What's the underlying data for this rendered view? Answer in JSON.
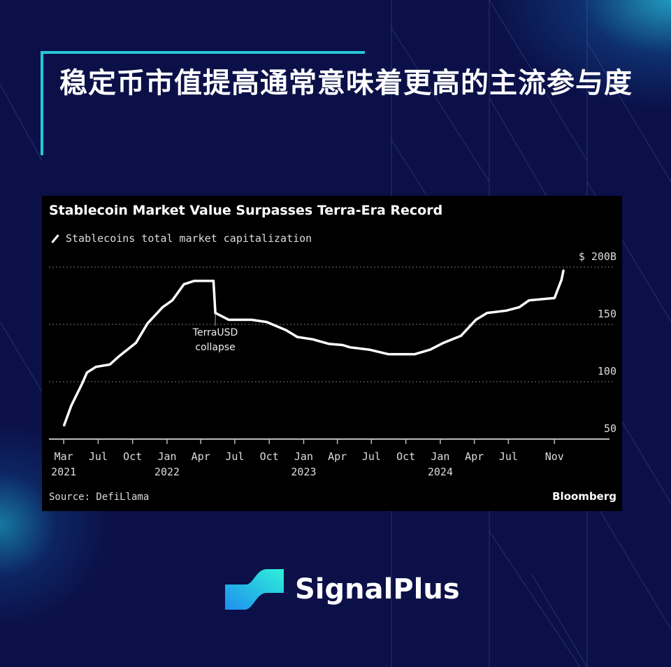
{
  "header": {
    "title": "稳定币市值提高通常意味着更高的主流参与度"
  },
  "brand": {
    "name": "SignalPlus",
    "accent": "#27c6d9",
    "background": "#0b1048"
  },
  "chart_data": {
    "type": "line",
    "title": "Stablecoin Market Value Surpasses Terra-Era Record",
    "series": [
      {
        "name": "Stablecoins total market capitalization",
        "color": "#ffffff",
        "points": [
          [
            "2021-04-01",
            62
          ],
          [
            "2021-04-20",
            79
          ],
          [
            "2021-05-20",
            99
          ],
          [
            "2021-06-01",
            108
          ],
          [
            "2021-06-25",
            113
          ],
          [
            "2021-08-01",
            115
          ],
          [
            "2021-08-25",
            122
          ],
          [
            "2021-10-10",
            134
          ],
          [
            "2021-11-10",
            151
          ],
          [
            "2021-12-20",
            165
          ],
          [
            "2022-01-15",
            171
          ],
          [
            "2022-02-15",
            185
          ],
          [
            "2022-03-15",
            188
          ],
          [
            "2022-05-05",
            188
          ],
          [
            "2022-05-10",
            160
          ],
          [
            "2022-06-15",
            154
          ],
          [
            "2022-08-15",
            154
          ],
          [
            "2022-09-25",
            152
          ],
          [
            "2022-11-15",
            145
          ],
          [
            "2022-12-15",
            139
          ],
          [
            "2023-01-25",
            137
          ],
          [
            "2023-03-10",
            133
          ],
          [
            "2023-04-15",
            132
          ],
          [
            "2023-05-05",
            130
          ],
          [
            "2023-06-25",
            128
          ],
          [
            "2023-08-15",
            124
          ],
          [
            "2023-10-25",
            124
          ],
          [
            "2023-12-05",
            128
          ],
          [
            "2024-01-10",
            134
          ],
          [
            "2024-02-25",
            140
          ],
          [
            "2024-04-05",
            154
          ],
          [
            "2024-05-05",
            160
          ],
          [
            "2024-06-25",
            162
          ],
          [
            "2024-07-30",
            165
          ],
          [
            "2024-08-25",
            171
          ],
          [
            "2024-11-01",
            173
          ],
          [
            "2024-11-20",
            189
          ],
          [
            "2024-11-25",
            197
          ]
        ]
      }
    ],
    "annotation": {
      "date": "2022-05-10",
      "value": 160,
      "text_line1": "TerraUSD",
      "text_line2": "collapse"
    },
    "yaxis": {
      "range": [
        50,
        200
      ],
      "ticks": [
        50,
        100,
        150,
        200
      ],
      "tick_labels": [
        "50",
        "100",
        "150",
        "$ 200B"
      ],
      "position": "right",
      "grid": true
    },
    "xaxis": {
      "range": [
        "2021-03-01",
        "2025-01-15"
      ],
      "ticks": [
        {
          "date": "2021-03-01",
          "label": "Mar",
          "year": "2021"
        },
        {
          "date": "2021-07-01",
          "label": "Jul",
          "year": ""
        },
        {
          "date": "2021-10-01",
          "label": "Oct",
          "year": ""
        },
        {
          "date": "2022-01-01",
          "label": "Jan",
          "year": "2022"
        },
        {
          "date": "2022-04-01",
          "label": "Apr",
          "year": ""
        },
        {
          "date": "2022-07-01",
          "label": "Jul",
          "year": ""
        },
        {
          "date": "2022-10-01",
          "label": "Oct",
          "year": ""
        },
        {
          "date": "2023-01-01",
          "label": "Jan",
          "year": "2023"
        },
        {
          "date": "2023-04-01",
          "label": "Apr",
          "year": ""
        },
        {
          "date": "2023-07-01",
          "label": "Jul",
          "year": ""
        },
        {
          "date": "2023-10-01",
          "label": "Oct",
          "year": ""
        },
        {
          "date": "2024-01-01",
          "label": "Jan",
          "year": "2024"
        },
        {
          "date": "2024-04-01",
          "label": "Apr",
          "year": ""
        },
        {
          "date": "2024-07-01",
          "label": "Jul",
          "year": ""
        },
        {
          "date": "2024-11-01",
          "label": "Nov",
          "year": ""
        }
      ]
    },
    "source": "Source: DefiLlama",
    "credit": "Bloomberg"
  }
}
